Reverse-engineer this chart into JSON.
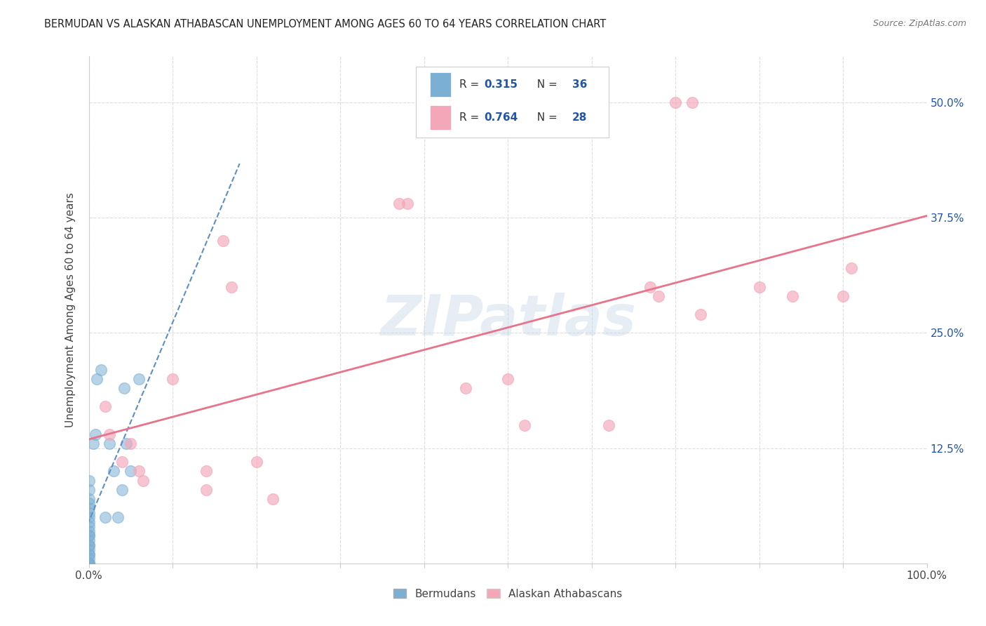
{
  "title": "BERMUDAN VS ALASKAN ATHABASCAN UNEMPLOYMENT AMONG AGES 60 TO 64 YEARS CORRELATION CHART",
  "source": "Source: ZipAtlas.com",
  "ylabel": "Unemployment Among Ages 60 to 64 years",
  "xlim": [
    0,
    1.0
  ],
  "ylim": [
    0,
    0.55
  ],
  "xticks": [
    0.0,
    0.1,
    0.2,
    0.3,
    0.4,
    0.5,
    0.6,
    0.7,
    0.8,
    0.9,
    1.0
  ],
  "xticklabels": [
    "0.0%",
    "",
    "",
    "",
    "",
    "",
    "",
    "",
    "",
    "",
    "100.0%"
  ],
  "yticks": [
    0.0,
    0.125,
    0.25,
    0.375,
    0.5
  ],
  "yticklabels": [
    "",
    "12.5%",
    "25.0%",
    "37.5%",
    "50.0%"
  ],
  "bermuda_scatter_x": [
    0.0,
    0.0,
    0.0,
    0.0,
    0.0,
    0.0,
    0.0,
    0.0,
    0.0,
    0.0,
    0.0,
    0.0,
    0.0,
    0.0,
    0.0,
    0.0,
    0.0,
    0.0,
    0.0,
    0.0,
    0.0,
    0.0,
    0.0,
    0.005,
    0.008,
    0.01,
    0.015,
    0.02,
    0.025,
    0.03,
    0.035,
    0.04,
    0.042,
    0.045,
    0.05,
    0.06
  ],
  "bermuda_scatter_y": [
    0.0,
    0.0,
    0.0,
    0.0,
    0.005,
    0.01,
    0.01,
    0.015,
    0.02,
    0.02,
    0.025,
    0.03,
    0.03,
    0.035,
    0.04,
    0.045,
    0.05,
    0.055,
    0.06,
    0.065,
    0.07,
    0.08,
    0.09,
    0.13,
    0.14,
    0.2,
    0.21,
    0.05,
    0.13,
    0.1,
    0.05,
    0.08,
    0.19,
    0.13,
    0.1,
    0.2
  ],
  "athabascan_scatter_x": [
    0.02,
    0.025,
    0.04,
    0.05,
    0.06,
    0.065,
    0.1,
    0.14,
    0.16,
    0.17,
    0.2,
    0.22,
    0.37,
    0.38,
    0.45,
    0.5,
    0.52,
    0.62,
    0.67,
    0.68,
    0.7,
    0.72,
    0.73,
    0.8,
    0.84,
    0.9,
    0.91,
    0.14
  ],
  "athabascan_scatter_y": [
    0.17,
    0.14,
    0.11,
    0.13,
    0.1,
    0.09,
    0.2,
    0.1,
    0.35,
    0.3,
    0.11,
    0.07,
    0.39,
    0.39,
    0.19,
    0.2,
    0.15,
    0.15,
    0.3,
    0.29,
    0.5,
    0.5,
    0.27,
    0.3,
    0.29,
    0.29,
    0.32,
    0.08
  ],
  "bermuda_color": "#7bafd4",
  "athabascan_color": "#f4a7b9",
  "bermuda_line_color": "#5b8fc9",
  "athabascan_line_color": "#e8738a",
  "watermark": "ZIPatlas",
  "background_color": "#ffffff",
  "grid_color": "#dddddd",
  "legend_R1": "0.315",
  "legend_N1": "36",
  "legend_R2": "0.764",
  "legend_N2": "28",
  "bottom_legend_labels": [
    "Bermudans",
    "Alaskan Athabascans"
  ]
}
